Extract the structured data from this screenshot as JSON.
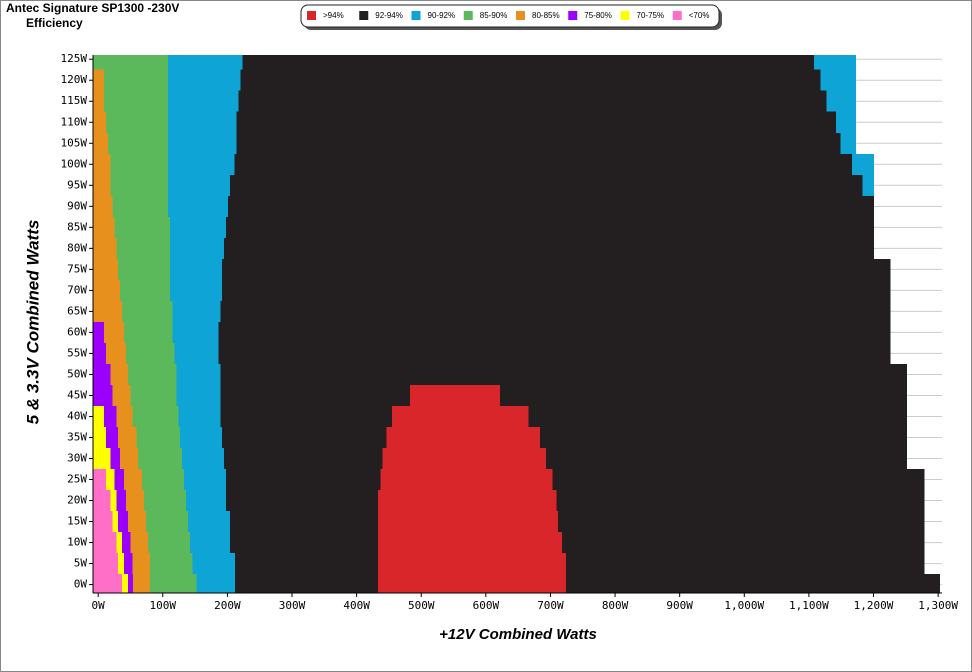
{
  "chart_data": {
    "type": "range-map",
    "title": "Antec Signature SP1300 -230V",
    "subtitle": "Efficiency",
    "x_label": "+12V Combined Watts",
    "y_label": "5 & 3.3V Combined Watts",
    "xlim": [
      -8,
      1306
    ],
    "ylim": [
      -2,
      126
    ],
    "xticks": [
      {
        "value": 0,
        "label": "0W"
      },
      {
        "value": 100,
        "label": "100W"
      },
      {
        "value": 200,
        "label": "200W"
      },
      {
        "value": 300,
        "label": "300W"
      },
      {
        "value": 400,
        "label": "400W"
      },
      {
        "value": 500,
        "label": "500W"
      },
      {
        "value": 600,
        "label": "600W"
      },
      {
        "value": 700,
        "label": "700W"
      },
      {
        "value": 800,
        "label": "800W"
      },
      {
        "value": 900,
        "label": "900W"
      },
      {
        "value": 1000,
        "label": "1,000W"
      },
      {
        "value": 1100,
        "label": "1,100W"
      },
      {
        "value": 1200,
        "label": "1,200W"
      },
      {
        "value": 1300,
        "label": "1,300W"
      }
    ],
    "yticks": [
      {
        "value": 0,
        "label": "0W"
      },
      {
        "value": 5,
        "label": "5W"
      },
      {
        "value": 10,
        "label": "10W"
      },
      {
        "value": 15,
        "label": "15W"
      },
      {
        "value": 20,
        "label": "20W"
      },
      {
        "value": 25,
        "label": "25W"
      },
      {
        "value": 30,
        "label": "30W"
      },
      {
        "value": 35,
        "label": "35W"
      },
      {
        "value": 40,
        "label": "40W"
      },
      {
        "value": 45,
        "label": "45W"
      },
      {
        "value": 50,
        "label": "50W"
      },
      {
        "value": 55,
        "label": "55W"
      },
      {
        "value": 60,
        "label": "60W"
      },
      {
        "value": 65,
        "label": "65W"
      },
      {
        "value": 70,
        "label": "70W"
      },
      {
        "value": 75,
        "label": "75W"
      },
      {
        "value": 80,
        "label": "80W"
      },
      {
        "value": 85,
        "label": "85W"
      },
      {
        "value": 90,
        "label": "90W"
      },
      {
        "value": 95,
        "label": "95W"
      },
      {
        "value": 100,
        "label": "100W"
      },
      {
        "value": 105,
        "label": "105W"
      },
      {
        "value": 110,
        "label": "110W"
      },
      {
        "value": 115,
        "label": "115W"
      },
      {
        "value": 120,
        "label": "120W"
      },
      {
        "value": 125,
        "label": "125W"
      }
    ],
    "grid": true,
    "y": [
      0,
      5,
      10,
      15,
      20,
      25,
      30,
      35,
      40,
      45,
      50,
      55,
      60,
      65,
      70,
      75,
      80,
      85,
      90,
      95,
      100,
      105,
      110,
      115,
      120,
      125
    ],
    "series": [
      {
        "name": ">94%",
        "color": "#d9262b",
        "values": [
          [
            [
              433,
              724
            ]
          ],
          [
            [
              433,
              724
            ]
          ],
          [
            [
              433,
              718
            ]
          ],
          [
            [
              433,
              712
            ]
          ],
          [
            [
              433,
              709
            ]
          ],
          [
            [
              437,
              703
            ]
          ],
          [
            [
              440,
              693
            ]
          ],
          [
            [
              446,
              684
            ]
          ],
          [
            [
              455,
              666
            ]
          ],
          [
            [
              483,
              622
            ]
          ],
          null,
          null,
          null,
          null,
          null,
          null,
          null,
          null,
          null,
          null,
          null,
          null,
          null,
          null,
          null,
          null
        ]
      },
      {
        "name": "92-94%",
        "color": "#231f20",
        "values": [
          [
            [
              212,
              1303
            ]
          ],
          [
            [
              212,
              1279
            ]
          ],
          [
            [
              204,
              1279
            ]
          ],
          [
            [
              204,
              1279
            ]
          ],
          [
            [
              198,
              1279
            ]
          ],
          [
            [
              198,
              1279
            ]
          ],
          [
            [
              195,
              1252
            ]
          ],
          [
            [
              192,
              1252
            ]
          ],
          [
            [
              189,
              1252
            ]
          ],
          [
            [
              189,
              1252
            ]
          ],
          [
            [
              189,
              1252
            ]
          ],
          [
            [
              186,
              1226
            ]
          ],
          [
            [
              186,
              1226
            ]
          ],
          [
            [
              189,
              1226
            ]
          ],
          [
            [
              192,
              1226
            ]
          ],
          [
            [
              192,
              1226
            ]
          ],
          [
            [
              195,
              1201
            ]
          ],
          [
            [
              198,
              1201
            ]
          ],
          [
            [
              201,
              1201
            ]
          ],
          [
            [
              204,
              1183
            ]
          ],
          [
            [
              211,
              1167
            ]
          ],
          [
            [
              214,
              1149
            ]
          ],
          [
            [
              214,
              1142
            ]
          ],
          [
            [
              217,
              1127
            ]
          ],
          [
            [
              220,
              1118
            ]
          ],
          [
            [
              223,
              1108
            ]
          ]
        ]
      },
      {
        "name": "90-92%",
        "color": "#0ea5d6",
        "values": [
          [
            [
              152,
              212
            ]
          ],
          [
            [
              146,
              212
            ]
          ],
          [
            [
              142,
              204
            ]
          ],
          [
            [
              139,
              204
            ]
          ],
          [
            [
              136,
              198
            ]
          ],
          [
            [
              133,
              198
            ]
          ],
          [
            [
              130,
              195
            ]
          ],
          [
            [
              127,
              192
            ]
          ],
          [
            [
              124,
              189
            ]
          ],
          [
            [
              121,
              189
            ]
          ],
          [
            [
              121,
              189
            ]
          ],
          [
            [
              118,
              186
            ]
          ],
          [
            [
              115,
              186
            ]
          ],
          [
            [
              115,
              189
            ]
          ],
          [
            [
              111,
              192
            ]
          ],
          [
            [
              111,
              192
            ]
          ],
          [
            [
              111,
              195
            ]
          ],
          [
            [
              111,
              198
            ]
          ],
          [
            [
              108,
              201
            ]
          ],
          [
            [
              108,
              204
            ],
            [
              1183,
              1201
            ]
          ],
          [
            [
              108,
              211
            ],
            [
              1167,
              1201
            ]
          ],
          [
            [
              108,
              214
            ],
            [
              1149,
              1173
            ]
          ],
          [
            [
              108,
              214
            ],
            [
              1142,
              1173
            ]
          ],
          [
            [
              108,
              217
            ],
            [
              1127,
              1173
            ]
          ],
          [
            [
              108,
              220
            ],
            [
              1118,
              1173
            ]
          ],
          [
            [
              108,
              223
            ],
            [
              1108,
              1173
            ]
          ]
        ]
      },
      {
        "name": "85-90%",
        "color": "#5bb85b",
        "values": [
          [
            [
              80,
              152
            ]
          ],
          [
            [
              80,
              146
            ]
          ],
          [
            [
              77,
              142
            ]
          ],
          [
            [
              74,
              139
            ]
          ],
          [
            [
              71,
              136
            ]
          ],
          [
            [
              68,
              133
            ]
          ],
          [
            [
              62,
              130
            ]
          ],
          [
            [
              59,
              127
            ]
          ],
          [
            [
              53,
              124
            ]
          ],
          [
            [
              50,
              121
            ]
          ],
          [
            [
              46,
              121
            ]
          ],
          [
            [
              43,
              118
            ]
          ],
          [
            [
              40,
              115
            ]
          ],
          [
            [
              37,
              115
            ]
          ],
          [
            [
              34,
              111
            ]
          ],
          [
            [
              31,
              111
            ]
          ],
          [
            [
              28,
              111
            ]
          ],
          [
            [
              25,
              111
            ]
          ],
          [
            [
              22,
              108
            ]
          ],
          [
            [
              19,
              108
            ]
          ],
          [
            [
              19,
              108
            ]
          ],
          [
            [
              15,
              108
            ]
          ],
          [
            [
              12,
              108
            ]
          ],
          [
            [
              9,
              108
            ]
          ],
          [
            [
              9,
              108
            ]
          ],
          [
            [
              -8,
              108
            ]
          ]
        ]
      },
      {
        "name": "80-85%",
        "color": "#e8901e",
        "values": [
          [
            [
              54,
              80
            ]
          ],
          [
            [
              53,
              80
            ]
          ],
          [
            [
              50,
              77
            ]
          ],
          [
            [
              46,
              74
            ]
          ],
          [
            [
              43,
              71
            ]
          ],
          [
            [
              40,
              68
            ]
          ],
          [
            [
              34,
              62
            ]
          ],
          [
            [
              31,
              59
            ]
          ],
          [
            [
              28,
              53
            ]
          ],
          [
            [
              22,
              50
            ]
          ],
          [
            [
              19,
              46
            ]
          ],
          [
            [
              12,
              43
            ]
          ],
          [
            [
              9,
              40
            ]
          ],
          [
            [
              -8,
              37
            ]
          ],
          [
            [
              -8,
              34
            ]
          ],
          [
            [
              -8,
              31
            ]
          ],
          [
            [
              -8,
              28
            ]
          ],
          [
            [
              -8,
              25
            ]
          ],
          [
            [
              -8,
              22
            ]
          ],
          [
            [
              -8,
              19
            ]
          ],
          [
            [
              -8,
              19
            ]
          ],
          [
            [
              -8,
              15
            ]
          ],
          [
            [
              -8,
              12
            ]
          ],
          [
            [
              -8,
              9
            ]
          ],
          [
            [
              -8,
              9
            ]
          ],
          null
        ]
      },
      {
        "name": "75-80%",
        "color": "#9b00ff",
        "values": [
          [
            [
              46,
              54
            ]
          ],
          [
            [
              40,
              53
            ]
          ],
          [
            [
              37,
              50
            ]
          ],
          [
            [
              31,
              46
            ]
          ],
          [
            [
              28,
              43
            ]
          ],
          [
            [
              25,
              40
            ]
          ],
          [
            [
              19,
              34
            ]
          ],
          [
            [
              12,
              31
            ]
          ],
          [
            [
              9,
              28
            ]
          ],
          [
            [
              -8,
              22
            ]
          ],
          [
            [
              -8,
              19
            ]
          ],
          [
            [
              -8,
              12
            ]
          ],
          [
            [
              -8,
              9
            ]
          ],
          null,
          null,
          null,
          null,
          null,
          null,
          null,
          null,
          null,
          null,
          null,
          null,
          null
        ]
      },
      {
        "name": "70-75%",
        "color": "#ffff00",
        "values": [
          [
            [
              37,
              46
            ]
          ],
          [
            [
              31,
              40
            ]
          ],
          [
            [
              28,
              37
            ]
          ],
          [
            [
              22,
              31
            ]
          ],
          [
            [
              19,
              28
            ]
          ],
          [
            [
              12,
              25
            ]
          ],
          [
            [
              -8,
              19
            ]
          ],
          [
            [
              -8,
              12
            ]
          ],
          [
            [
              -8,
              9
            ]
          ],
          null,
          null,
          null,
          null,
          null,
          null,
          null,
          null,
          null,
          null,
          null,
          null,
          null,
          null,
          null,
          null,
          null
        ]
      },
      {
        "name": "<70%",
        "color": "#ff6ec7",
        "values": [
          [
            [
              -8,
              37
            ]
          ],
          [
            [
              -8,
              31
            ]
          ],
          [
            [
              -8,
              28
            ]
          ],
          [
            [
              -8,
              22
            ]
          ],
          [
            [
              -8,
              19
            ]
          ],
          [
            [
              -8,
              12
            ]
          ],
          null,
          null,
          null,
          null,
          null,
          null,
          null,
          null,
          null,
          null,
          null,
          null,
          null,
          null,
          null,
          null,
          null,
          null,
          null,
          null
        ]
      }
    ]
  }
}
